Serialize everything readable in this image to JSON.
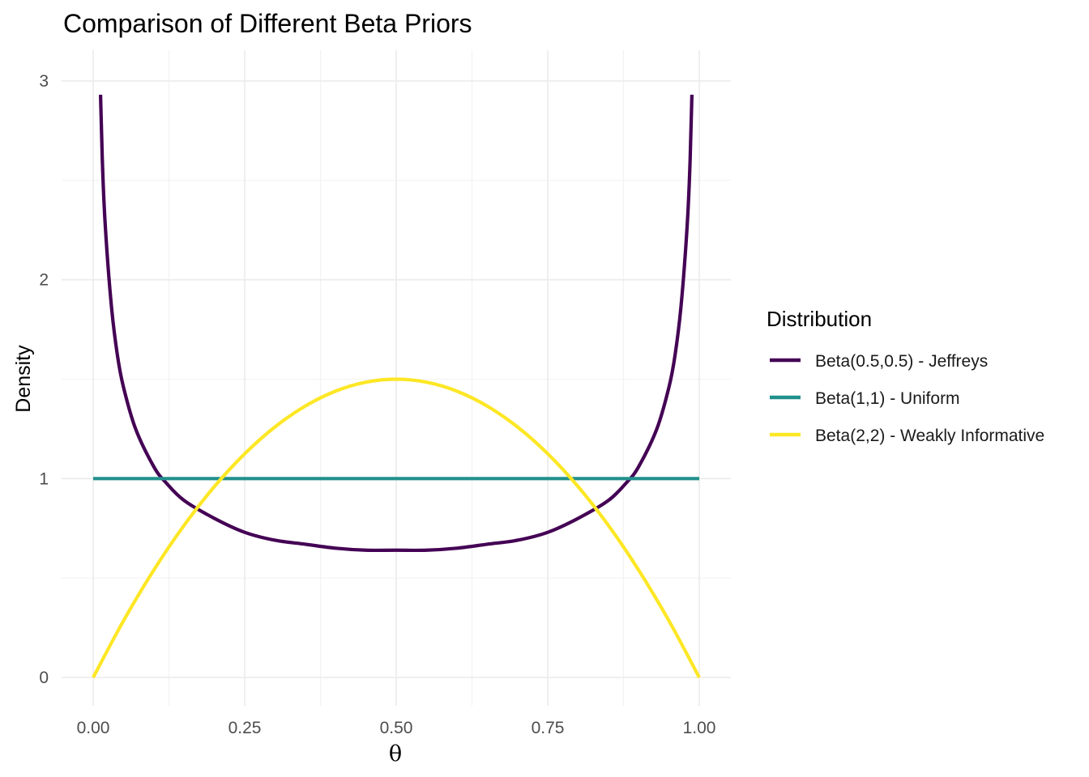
{
  "chart_data": {
    "type": "line",
    "title": "Comparison of Different Beta Priors",
    "xlabel": "θ",
    "ylabel": "Density",
    "xlim": [
      0,
      1
    ],
    "ylim": [
      0,
      3
    ],
    "x_ticks": [
      "0.00",
      "0.25",
      "0.50",
      "0.75",
      "1.00"
    ],
    "y_ticks": [
      "0",
      "1",
      "2",
      "3"
    ],
    "grid": true,
    "legend": {
      "title": "Distribution",
      "position": "right"
    },
    "series": [
      {
        "name": "Beta(0.5,0.5) - Jeffreys",
        "color": "#440154",
        "x": [
          0.01,
          0.015,
          0.02,
          0.03,
          0.04,
          0.05,
          0.07,
          0.1,
          0.12,
          0.15,
          0.2,
          0.25,
          0.3,
          0.35,
          0.4,
          0.45,
          0.5,
          0.55,
          0.6,
          0.65,
          0.7,
          0.75,
          0.8,
          0.85,
          0.88,
          0.9,
          0.93,
          0.95,
          0.96,
          0.97,
          0.98,
          0.985,
          0.99
        ],
        "y": [
          3.2,
          2.61,
          2.27,
          1.87,
          1.62,
          1.46,
          1.25,
          1.06,
          0.98,
          0.89,
          0.8,
          0.73,
          0.69,
          0.67,
          0.65,
          0.64,
          0.64,
          0.64,
          0.65,
          0.67,
          0.69,
          0.73,
          0.8,
          0.89,
          0.98,
          1.06,
          1.25,
          1.46,
          1.62,
          1.87,
          2.27,
          2.61,
          3.2
        ]
      },
      {
        "name": "Beta(1,1) - Uniform",
        "color": "#21908C",
        "x": [
          0,
          1
        ],
        "y": [
          1,
          1
        ]
      },
      {
        "name": "Beta(2,2) - Weakly Informative",
        "color": "#FDE725",
        "x": [
          0,
          0.05,
          0.1,
          0.15,
          0.2,
          0.25,
          0.3,
          0.35,
          0.4,
          0.45,
          0.5,
          0.55,
          0.6,
          0.65,
          0.7,
          0.75,
          0.8,
          0.85,
          0.9,
          0.95,
          1
        ],
        "y": [
          0,
          0.285,
          0.54,
          0.765,
          0.96,
          1.125,
          1.26,
          1.365,
          1.44,
          1.485,
          1.5,
          1.485,
          1.44,
          1.365,
          1.26,
          1.125,
          0.96,
          0.765,
          0.54,
          0.285,
          0
        ]
      }
    ]
  }
}
